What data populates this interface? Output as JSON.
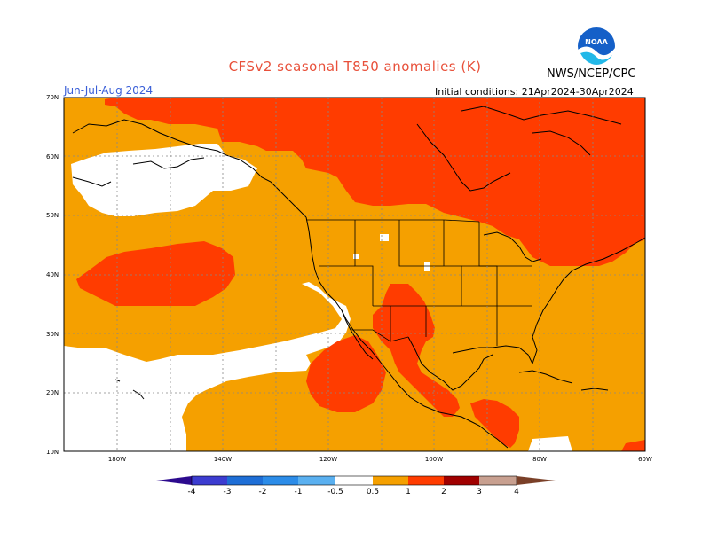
{
  "header": {
    "title": "CFSv2 seasonal T850 anomalies (K)",
    "agency": "NWS/NCEP/CPC",
    "period": "Jun-Jul-Aug 2024",
    "initial_conditions": "Initial conditions: 21Apr2024-30Apr2024",
    "logo_text": "NOAA"
  },
  "map": {
    "lat_labels": [
      "70N",
      "60N",
      "50N",
      "40N",
      "30N",
      "20N",
      "10N"
    ],
    "lon_labels": [
      "180W",
      "140W",
      "120W",
      "100W",
      "80W",
      "60W"
    ],
    "colors": {
      "frame": "#000000",
      "grid": "#888888",
      "white": "#ffffff",
      "orange": "#f5a000",
      "red_orange": "#ff3c00",
      "dark_red": "#b40000"
    }
  },
  "colorbar": {
    "labels": [
      "-4",
      "-3",
      "-2",
      "-1",
      "-0.5",
      "0.5",
      "1",
      "2",
      "3",
      "4"
    ],
    "colors": [
      "#2c0a8e",
      "#3c3cd0",
      "#1e6ed6",
      "#2c8ce8",
      "#5ab0f0",
      "#ffffff",
      "#f5a000",
      "#ff3c00",
      "#b40000",
      "#a00000",
      "#c8a090",
      "#7a4028"
    ]
  }
}
